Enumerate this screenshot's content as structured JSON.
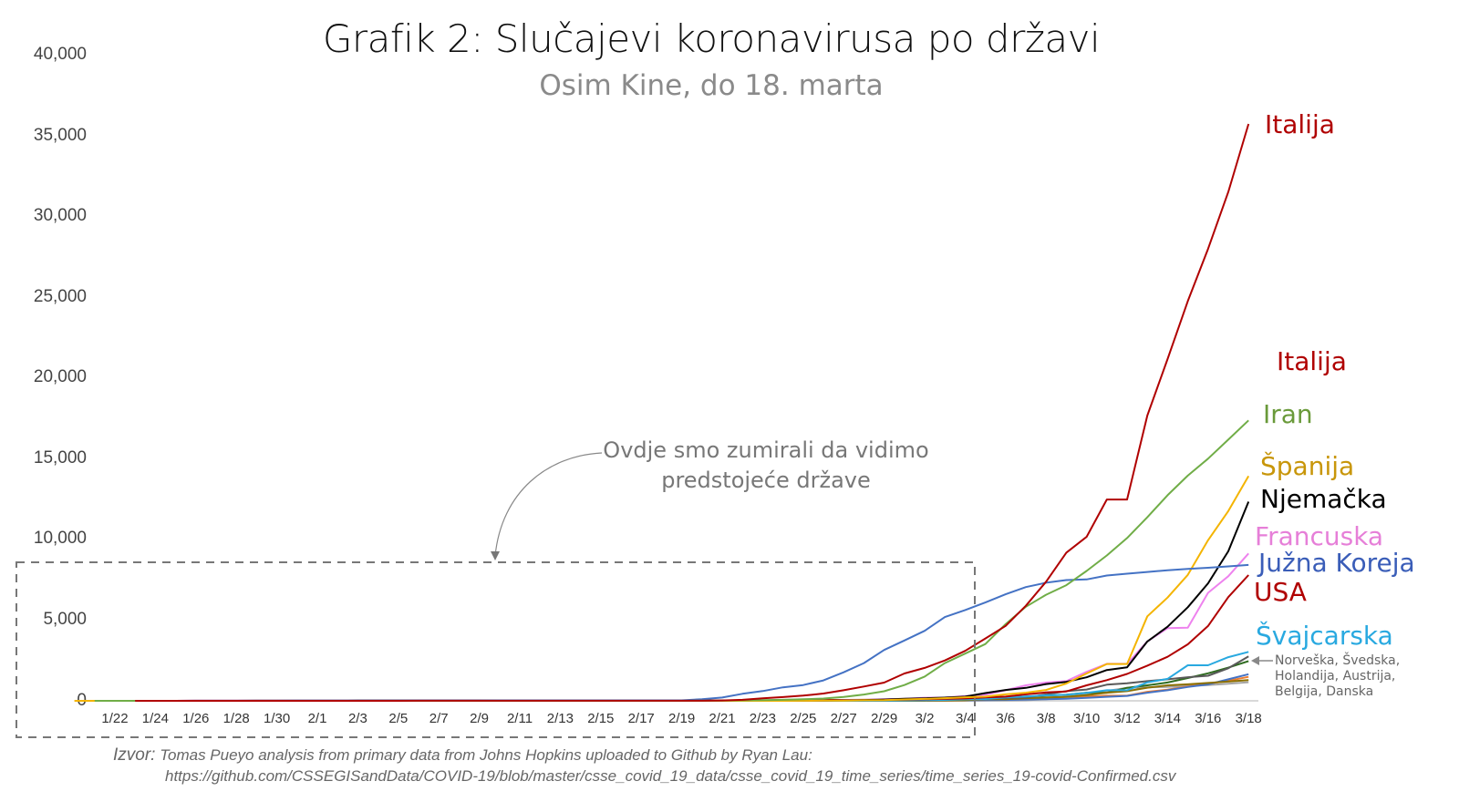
{
  "title": "Grafik 2: Slučajevi koronavirusa po državi",
  "subtitle": "Osim Kine, do 18. marta",
  "annotation": {
    "line1": "Ovdje smo zumirali da vidimo",
    "line2": "predstojeće države"
  },
  "source": {
    "prefix": "Izvor:",
    "line1": "Tomas Pueyo analysis from primary data from Johns Hopkins uploaded to Github by Ryan Lau:",
    "line2": "https://github.com/CSSEGISandData/COVID-19/blob/master/csse_covid_19_data/csse_covid_19_time_series/time_series_19-covid-Confirmed.csv"
  },
  "labels": {
    "italija_top": "Italija",
    "italija_mid": "Italija",
    "iran": "Iran",
    "spanija": "Španija",
    "njemacka": "Njemačka",
    "francuska": "Francuska",
    "juzna_koreja": "Južna Koreja",
    "usa": "USA",
    "svajcarska": "Švajcarska",
    "others": "Norveška, Švedska,\nHolandija, Austrija,\nBelgija, Danska"
  },
  "chart_data": {
    "type": "line",
    "title": "Grafik 2: Slučajevi koronavirusa po državi",
    "subtitle": "Osim Kine, do 18. marta",
    "xlabel": "",
    "ylabel": "",
    "ylim": [
      0,
      40000
    ],
    "grid": false,
    "legend_position": "inline-right",
    "y_ticks": [
      "0",
      "5,000",
      "10,000",
      "15,000",
      "20,000",
      "25,000",
      "30,000",
      "35,000",
      "40,000"
    ],
    "x_tick_labels": [
      "1/22",
      "1/24",
      "1/26",
      "1/28",
      "1/30",
      "2/1",
      "2/3",
      "2/5",
      "2/7",
      "2/9",
      "2/11",
      "2/13",
      "2/15",
      "2/17",
      "2/19",
      "2/21",
      "2/23",
      "2/25",
      "2/27",
      "2/29",
      "3/2",
      "3/4",
      "3/6",
      "3/8",
      "3/10",
      "3/12",
      "3/14",
      "3/16",
      "3/18"
    ],
    "x_start": "1/22",
    "x_end": "3/18",
    "series": [
      {
        "name": "Italija",
        "color": "#b00000",
        "values": [
          0,
          0,
          0,
          0,
          0,
          0,
          0,
          0,
          0,
          2,
          2,
          2,
          2,
          2,
          3,
          3,
          3,
          3,
          3,
          3,
          3,
          3,
          3,
          3,
          3,
          3,
          3,
          3,
          3,
          20,
          62,
          155,
          229,
          322,
          453,
          655,
          888,
          1128,
          1694,
          2036,
          2502,
          3089,
          3858,
          4636,
          5883,
          7375,
          9172,
          10149,
          12462,
          12462,
          17660,
          21157,
          24747,
          27980,
          31506,
          35713
        ]
      },
      {
        "name": "Iran",
        "color": "#70ad47",
        "values": [
          0,
          0,
          0,
          0,
          0,
          0,
          0,
          0,
          0,
          0,
          0,
          0,
          0,
          0,
          0,
          0,
          0,
          0,
          0,
          0,
          0,
          0,
          0,
          0,
          0,
          0,
          0,
          0,
          0,
          2,
          5,
          18,
          28,
          43,
          61,
          95,
          139,
          245,
          388,
          593,
          978,
          1501,
          2336,
          2922,
          3513,
          4747,
          5823,
          6566,
          7161,
          8042,
          9000,
          10075,
          11364,
          12729,
          13938,
          14991,
          16169,
          17361
        ]
      },
      {
        "name": "Južna Koreja",
        "color": "#4472c4",
        "values": [
          1,
          1,
          2,
          2,
          3,
          4,
          4,
          4,
          4,
          11,
          12,
          15,
          15,
          16,
          19,
          23,
          24,
          24,
          25,
          27,
          28,
          28,
          28,
          28,
          28,
          29,
          30,
          31,
          31,
          104,
          204,
          433,
          602,
          833,
          977,
          1261,
          1766,
          2337,
          3150,
          3736,
          4335,
          5186,
          5621,
          6088,
          6593,
          7041,
          7314,
          7478,
          7513,
          7755,
          7869,
          7979,
          8086,
          8162,
          8236,
          8320,
          8413
        ]
      },
      {
        "name": "Španija",
        "color": "#f4b400",
        "values": [
          0,
          0,
          0,
          0,
          0,
          0,
          0,
          0,
          0,
          1,
          1,
          1,
          1,
          2,
          2,
          2,
          2,
          2,
          2,
          2,
          2,
          2,
          2,
          2,
          2,
          2,
          2,
          2,
          2,
          2,
          2,
          2,
          2,
          2,
          2,
          2,
          6,
          13,
          15,
          32,
          45,
          84,
          120,
          165,
          222,
          259,
          400,
          500,
          673,
          1073,
          1695,
          2277,
          2277,
          5232,
          6391,
          7798,
          9942,
          11748,
          13910
        ]
      },
      {
        "name": "Njemačka",
        "color": "#000000",
        "values": [
          0,
          0,
          0,
          0,
          0,
          1,
          4,
          4,
          4,
          5,
          8,
          10,
          12,
          12,
          12,
          12,
          13,
          13,
          14,
          14,
          16,
          16,
          16,
          16,
          16,
          16,
          16,
          16,
          16,
          16,
          16,
          16,
          16,
          16,
          18,
          26,
          48,
          79,
          130,
          159,
          196,
          262,
          482,
          670,
          799,
          1040,
          1176,
          1457,
          1908,
          2078,
          3675,
          4585,
          5795,
          7272,
          9257,
          12327
        ]
      },
      {
        "name": "Francuska",
        "color": "#ee82ee",
        "values": [
          0,
          0,
          2,
          3,
          3,
          3,
          4,
          5,
          5,
          5,
          6,
          6,
          6,
          6,
          6,
          6,
          6,
          6,
          6,
          11,
          11,
          11,
          11,
          11,
          11,
          11,
          12,
          12,
          12,
          12,
          12,
          12,
          12,
          12,
          18,
          38,
          57,
          100,
          130,
          191,
          204,
          288,
          380,
          656,
          959,
          1136,
          1219,
          1794,
          2293,
          2293,
          3681,
          4496,
          4532,
          6683,
          7715,
          9124
        ]
      },
      {
        "name": "USA",
        "color": "#b00000",
        "values": [
          1,
          1,
          2,
          2,
          5,
          5,
          5,
          5,
          5,
          7,
          8,
          8,
          11,
          11,
          11,
          11,
          11,
          11,
          11,
          11,
          12,
          12,
          13,
          13,
          13,
          13,
          13,
          13,
          13,
          13,
          15,
          15,
          15,
          51,
          51,
          57,
          58,
          60,
          68,
          74,
          98,
          118,
          149,
          217,
          262,
          402,
          518,
          583,
          959,
          1281,
          1663,
          2179,
          2727,
          3499,
          4632,
          6421,
          7786
        ]
      },
      {
        "name": "Švajcarska",
        "color": "#29a9e0",
        "values": [
          0,
          0,
          0,
          0,
          0,
          0,
          0,
          0,
          0,
          0,
          0,
          0,
          0,
          0,
          0,
          0,
          0,
          0,
          0,
          0,
          0,
          0,
          0,
          0,
          0,
          0,
          0,
          0,
          0,
          0,
          0,
          0,
          0,
          1,
          1,
          8,
          8,
          18,
          27,
          42,
          56,
          90,
          114,
          214,
          268,
          337,
          374,
          491,
          652,
          652,
          1139,
          1359,
          2200,
          2200,
          2700,
          3028
        ]
      },
      {
        "name": "Norveška",
        "color": "#595959",
        "values": [
          0,
          0,
          0,
          0,
          0,
          0,
          0,
          0,
          0,
          0,
          0,
          0,
          0,
          0,
          0,
          0,
          0,
          0,
          0,
          0,
          0,
          0,
          0,
          0,
          0,
          0,
          0,
          0,
          0,
          0,
          0,
          0,
          0,
          1,
          1,
          6,
          15,
          19,
          25,
          32,
          56,
          87,
          108,
          147,
          176,
          205,
          400,
          598,
          702,
          996,
          1090,
          1221,
          1333,
          1463,
          1550,
          2013,
          2749
        ]
      },
      {
        "name": "Švedska",
        "color": "#8b6f00",
        "values": [
          0,
          0,
          0,
          0,
          0,
          0,
          0,
          0,
          0,
          1,
          1,
          1,
          1,
          1,
          1,
          1,
          1,
          1,
          1,
          1,
          1,
          1,
          1,
          1,
          1,
          1,
          1,
          1,
          1,
          1,
          1,
          1,
          1,
          1,
          1,
          2,
          7,
          7,
          12,
          14,
          15,
          21,
          35,
          94,
          101,
          161,
          203,
          248,
          355,
          500,
          599,
          814,
          961,
          1022,
          1103,
          1190,
          1279
        ]
      },
      {
        "name": "Holandija",
        "color": "#2e6b1f",
        "values": [
          0,
          0,
          0,
          0,
          0,
          0,
          0,
          0,
          0,
          0,
          0,
          0,
          0,
          0,
          0,
          0,
          0,
          0,
          0,
          0,
          0,
          0,
          0,
          0,
          0,
          0,
          0,
          0,
          0,
          0,
          0,
          0,
          0,
          0,
          0,
          1,
          6,
          10,
          18,
          24,
          38,
          82,
          128,
          188,
          265,
          321,
          382,
          503,
          503,
          804,
          959,
          1135,
          1413,
          1705,
          2051,
          2460
        ]
      },
      {
        "name": "Austrija",
        "color": "#4472c4",
        "values": [
          0,
          0,
          0,
          0,
          0,
          0,
          0,
          0,
          0,
          0,
          0,
          0,
          0,
          0,
          0,
          0,
          0,
          0,
          0,
          0,
          0,
          0,
          0,
          0,
          0,
          0,
          0,
          0,
          0,
          0,
          0,
          0,
          0,
          0,
          0,
          2,
          2,
          3,
          3,
          9,
          14,
          18,
          21,
          29,
          41,
          55,
          79,
          104,
          131,
          182,
          246,
          302,
          504,
          655,
          860,
          1018,
          1332,
          1646
        ]
      },
      {
        "name": "Belgija",
        "color": "#ed7d31",
        "values": [
          0,
          0,
          0,
          0,
          0,
          0,
          0,
          0,
          0,
          0,
          1,
          1,
          1,
          1,
          1,
          1,
          1,
          1,
          1,
          1,
          1,
          1,
          1,
          1,
          1,
          1,
          1,
          1,
          1,
          1,
          1,
          1,
          1,
          1,
          1,
          1,
          1,
          1,
          1,
          2,
          8,
          13,
          23,
          50,
          109,
          169,
          200,
          239,
          267,
          314,
          314,
          559,
          689,
          886,
          1058,
          1243,
          1486
        ]
      },
      {
        "name": "Danska",
        "color": "#a5a5a5",
        "values": [
          0,
          0,
          0,
          0,
          0,
          0,
          0,
          0,
          0,
          0,
          0,
          0,
          0,
          0,
          0,
          0,
          0,
          0,
          0,
          0,
          0,
          0,
          0,
          0,
          0,
          0,
          0,
          0,
          0,
          0,
          0,
          0,
          0,
          0,
          0,
          1,
          1,
          3,
          4,
          4,
          6,
          10,
          10,
          23,
          23,
          35,
          90,
          262,
          442,
          615,
          801,
          827,
          864,
          914,
          977,
          1057,
          1151
        ]
      }
    ]
  }
}
